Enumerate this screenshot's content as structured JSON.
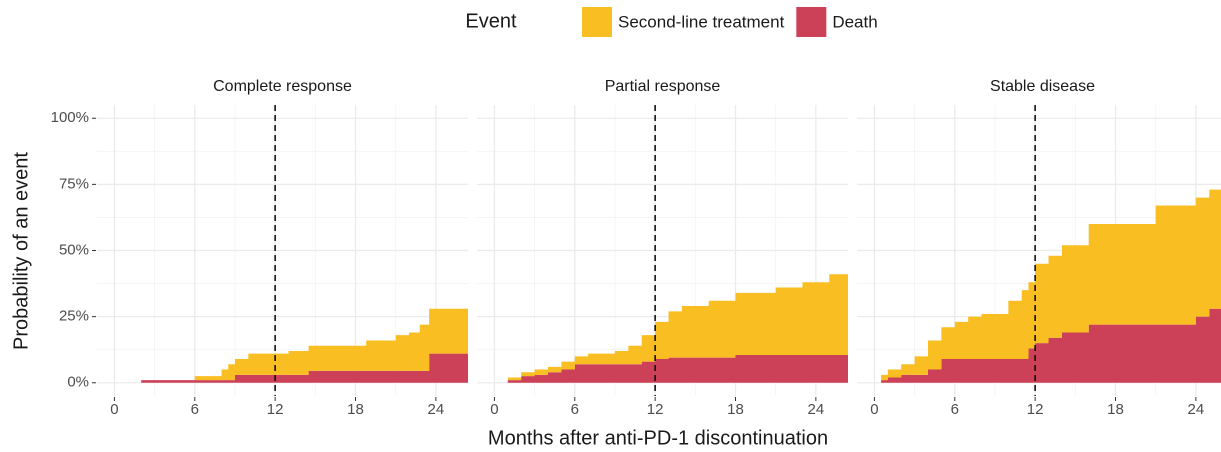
{
  "chart_data": {
    "type": "area",
    "stacked": true,
    "step": true,
    "legend_title": "Event",
    "series": [
      {
        "name": "Death",
        "color": "#CC4058"
      },
      {
        "name": "Second-line treatment",
        "color": "#F9BE22"
      }
    ],
    "x_label": "Months after anti-PD-1 discontinuation",
    "y_label": "Probability of an event",
    "xlim": [
      -1.3,
      26.4
    ],
    "xticks": [
      0,
      6,
      12,
      18,
      24
    ],
    "ylim": [
      -5,
      105
    ],
    "yticks": [
      {
        "value": 0,
        "label": "0%"
      },
      {
        "value": 25,
        "label": "25%"
      },
      {
        "value": 50,
        "label": "50%"
      },
      {
        "value": 75,
        "label": "75%"
      },
      {
        "value": 100,
        "label": "100%"
      }
    ],
    "vline": 12,
    "grid": true,
    "facets": [
      {
        "title": "Complete response",
        "x": [
          0,
          2,
          6,
          8,
          8.5,
          9,
          10,
          13,
          14,
          14.5,
          18.8,
          21,
          22,
          22.8,
          23.5,
          26.4
        ],
        "series": [
          {
            "values": [
              0,
              1,
              1,
              1,
              1,
              3,
              3,
              3,
              3,
              4.5,
              4.5,
              4.5,
              4.5,
              4.5,
              11,
              11
            ]
          },
          {
            "values": [
              0,
              0,
              1.5,
              4,
              6,
              6,
              8,
              9,
              9,
              9.5,
              11.5,
              13.5,
              14.5,
              17.5,
              17,
              17
            ]
          }
        ]
      },
      {
        "title": "Partial response",
        "x": [
          0,
          1,
          2,
          3,
          4,
          5,
          6,
          7,
          9,
          10,
          11,
          12,
          13,
          14,
          16,
          18,
          21,
          23,
          25,
          26.4
        ],
        "series": [
          {
            "values": [
              0,
              1,
              2.5,
              3,
              4,
              5,
              7,
              7,
              7,
              7,
              8,
              9,
              9.5,
              9.5,
              9.5,
              10.5,
              10.5,
              10.5,
              10.5,
              10.5
            ]
          },
          {
            "values": [
              0,
              1,
              1.5,
              2,
              2,
              3,
              3,
              4,
              5,
              7,
              10,
              14,
              17.5,
              19.5,
              21.5,
              23.5,
              25.5,
              27.5,
              30.5,
              30.5
            ]
          }
        ]
      },
      {
        "title": "Stable disease",
        "x": [
          0,
          0.5,
          1,
          2,
          3,
          4,
          5,
          6,
          7,
          8,
          10,
          11,
          11.5,
          12,
          13,
          14,
          16,
          21,
          23,
          24,
          25,
          26.4
        ],
        "series": [
          {
            "values": [
              0,
              1,
              2,
              3,
              3,
              5,
              9,
              9,
              9,
              9,
              9,
              9,
              13,
              15,
              17,
              19,
              22,
              22,
              22,
              25,
              28,
              30
            ]
          },
          {
            "values": [
              0,
              2,
              3,
              4,
              7,
              11,
              12,
              14,
              16,
              17,
              22,
              26,
              25,
              30,
              31,
              33,
              38,
              45,
              45,
              45,
              45,
              45
            ]
          }
        ]
      }
    ]
  }
}
